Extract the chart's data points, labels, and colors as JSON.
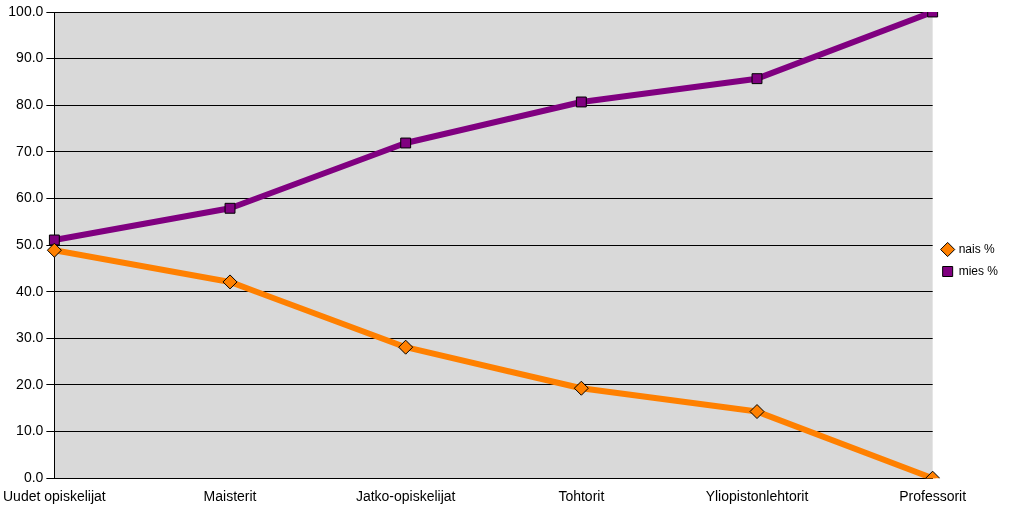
{
  "chart_data": {
    "type": "line",
    "categories": [
      "Uudet opiskelijat",
      "Maisterit",
      "Jatko-opiskelijat",
      "Tohtorit",
      "Yliopistonlehtorit",
      "Professorit"
    ],
    "series": [
      {
        "name": "nais %",
        "color": "#ff8000",
        "marker": "diamond",
        "values": [
          48.9,
          42.1,
          28.1,
          19.3,
          14.3,
          0
        ]
      },
      {
        "name": "mies %",
        "color": "#800080",
        "marker": "square",
        "values": [
          51.1,
          57.9,
          71.9,
          80.7,
          85.7,
          100
        ]
      }
    ],
    "ylim": [
      0,
      100
    ],
    "yticks": [
      {
        "value": 0,
        "label": "0.0"
      },
      {
        "value": 10,
        "label": "10.0"
      },
      {
        "value": 20,
        "label": "20.0"
      },
      {
        "value": 30,
        "label": "30.0"
      },
      {
        "value": 40,
        "label": "40.0"
      },
      {
        "value": 50,
        "label": "50.0"
      },
      {
        "value": 60,
        "label": "60.0"
      },
      {
        "value": 70,
        "label": "70.0"
      },
      {
        "value": 80,
        "label": "80.0"
      },
      {
        "value": 90,
        "label": "90.0"
      },
      {
        "value": 100,
        "label": "100.0"
      }
    ],
    "grid": "y",
    "legend": "right",
    "line_style": "solid"
  }
}
